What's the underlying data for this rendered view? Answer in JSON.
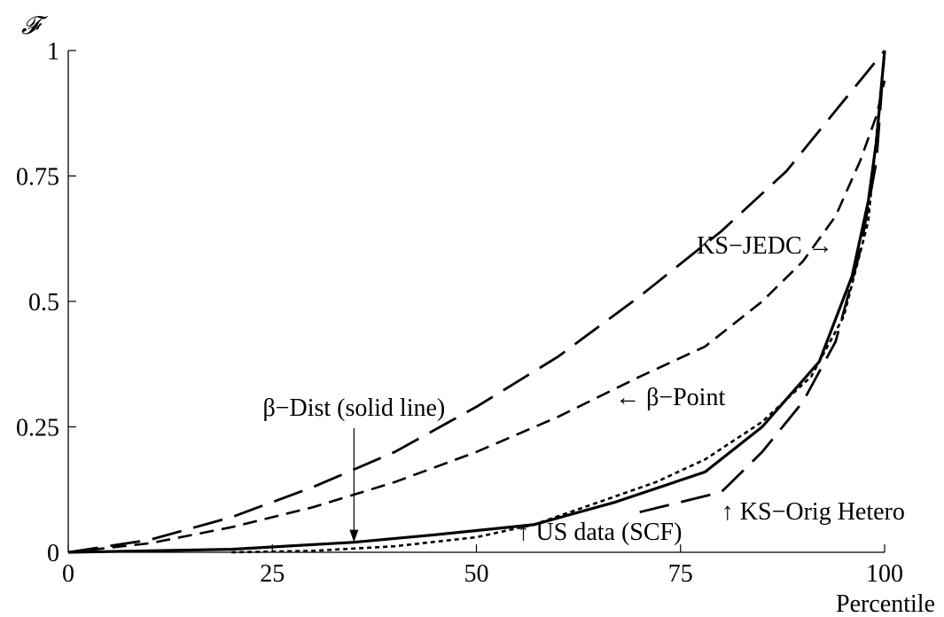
{
  "chart_data": {
    "type": "line",
    "title": "",
    "xlabel": "Percentile",
    "ylabel": "𝓕",
    "xlim": [
      0,
      100
    ],
    "ylim": [
      0,
      1
    ],
    "xticks": [
      0,
      25,
      50,
      75,
      100
    ],
    "xtick_labels": [
      "0",
      "25",
      "50",
      "75",
      "100"
    ],
    "yticks": [
      0,
      0.25,
      0.5,
      0.75,
      1
    ],
    "ytick_labels": [
      "0",
      "0.25",
      "0.5",
      "0.75",
      "1"
    ],
    "grid": false,
    "legend": "none",
    "series": [
      {
        "key": "beta_dist",
        "style": "solid",
        "points": [
          [
            0,
            0
          ],
          [
            20,
            0.006
          ],
          [
            35,
            0.02
          ],
          [
            45,
            0.035
          ],
          [
            57,
            0.055
          ],
          [
            67,
            0.1
          ],
          [
            78,
            0.16
          ],
          [
            85,
            0.25
          ],
          [
            92,
            0.38
          ],
          [
            96,
            0.55
          ],
          [
            98,
            0.7
          ],
          [
            99,
            0.82
          ],
          [
            100,
            1.0
          ]
        ]
      },
      {
        "key": "us_data_scf",
        "style": "dotted",
        "points": [
          [
            20,
            0
          ],
          [
            30,
            0.003
          ],
          [
            40,
            0.012
          ],
          [
            50,
            0.03
          ],
          [
            57,
            0.055
          ],
          [
            65,
            0.1
          ],
          [
            72,
            0.14
          ],
          [
            78,
            0.185
          ],
          [
            85,
            0.26
          ],
          [
            91,
            0.35
          ],
          [
            95,
            0.47
          ],
          [
            98,
            0.66
          ],
          [
            100,
            1.0
          ]
        ]
      },
      {
        "key": "beta_point",
        "style": "short-dash",
        "points": [
          [
            0,
            0
          ],
          [
            10,
            0.018
          ],
          [
            20,
            0.05
          ],
          [
            30,
            0.09
          ],
          [
            40,
            0.14
          ],
          [
            50,
            0.2
          ],
          [
            60,
            0.27
          ],
          [
            70,
            0.35
          ],
          [
            78,
            0.41
          ],
          [
            85,
            0.5
          ],
          [
            90,
            0.58
          ],
          [
            94,
            0.67
          ],
          [
            97,
            0.78
          ],
          [
            99,
            0.87
          ],
          [
            100,
            0.94
          ]
        ]
      },
      {
        "key": "ks_jedc",
        "style": "long-dash",
        "points": [
          [
            0,
            0
          ],
          [
            10,
            0.025
          ],
          [
            20,
            0.07
          ],
          [
            30,
            0.13
          ],
          [
            40,
            0.2
          ],
          [
            50,
            0.29
          ],
          [
            60,
            0.39
          ],
          [
            70,
            0.51
          ],
          [
            80,
            0.64
          ],
          [
            88,
            0.76
          ],
          [
            94,
            0.88
          ],
          [
            100,
            1.0
          ]
        ]
      },
      {
        "key": "ks_orig_hetero",
        "style": "long-dash",
        "points": [
          [
            70,
            0.08
          ],
          [
            80,
            0.12
          ],
          [
            85,
            0.2
          ],
          [
            90,
            0.3
          ],
          [
            94,
            0.42
          ],
          [
            97,
            0.6
          ],
          [
            99,
            0.78
          ],
          [
            100,
            1.0
          ]
        ]
      }
    ],
    "annotations": [
      {
        "key": "ks_jedc",
        "text": "KS−JEDC →",
        "x": 77,
        "y": 0.595
      },
      {
        "key": "beta_point",
        "text": "← β−Point",
        "x": 67,
        "y": 0.293
      },
      {
        "key": "beta_dist",
        "text": "β−Dist (solid line)",
        "x": 35,
        "y": 0.272,
        "arrow_to": [
          35,
          0.02
        ]
      },
      {
        "key": "us_data_scf",
        "text": "↑ US data (SCF)",
        "x": 55,
        "y": 0.025
      },
      {
        "key": "ks_orig_hetero",
        "text": "↑ KS−Orig Hetero",
        "x": 80,
        "y": 0.065
      }
    ]
  }
}
